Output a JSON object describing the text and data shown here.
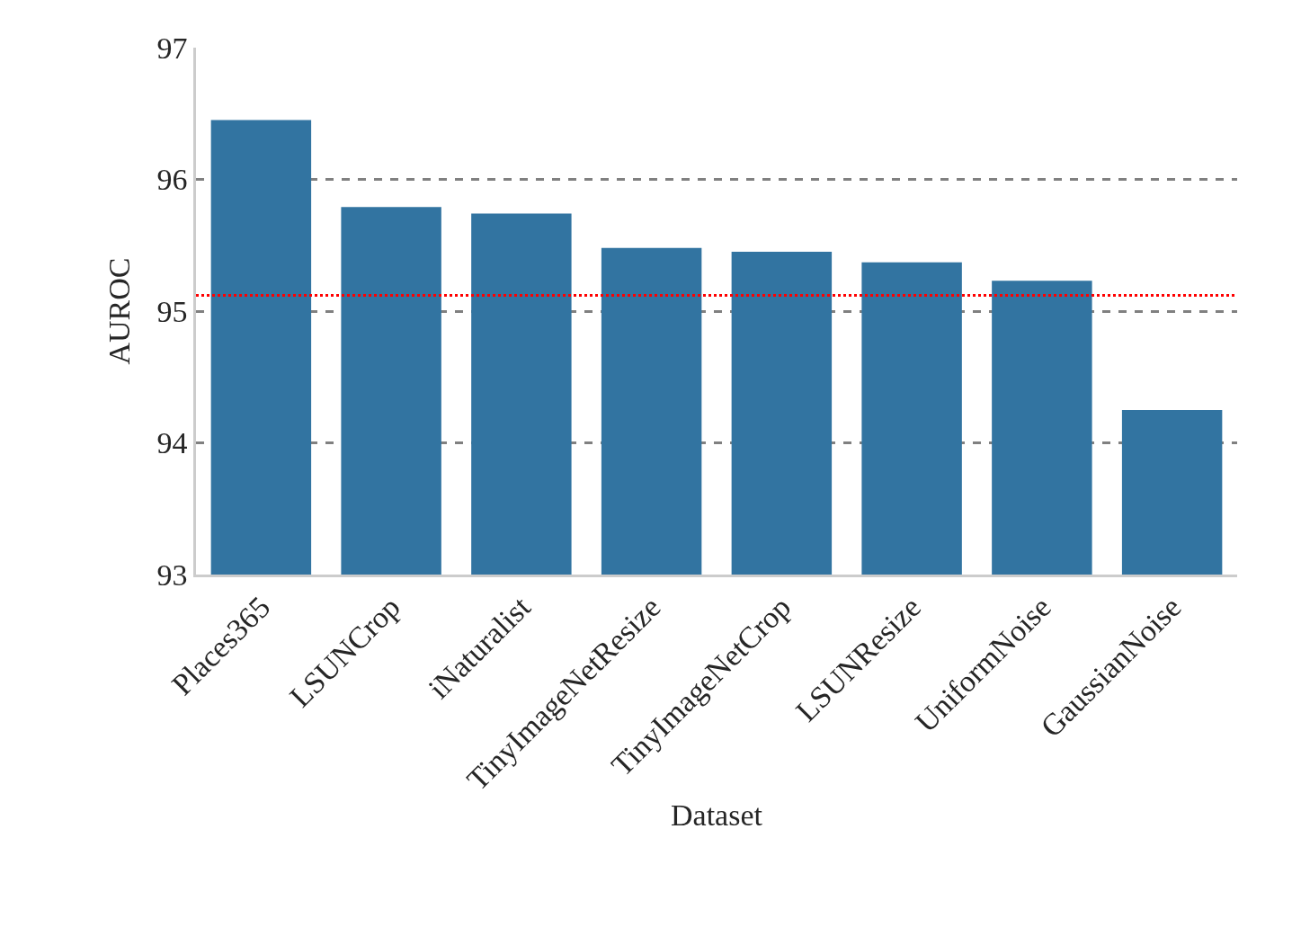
{
  "chart_data": {
    "type": "bar",
    "xlabel": "Dataset",
    "ylabel": "AUROC",
    "categories": [
      "Places365",
      "LSUNCrop",
      "iNaturalist",
      "TinyImageNetResize",
      "TinyImageNetCrop",
      "LSUNResize",
      "UniformNoise",
      "GaussianNoise"
    ],
    "values": [
      96.45,
      95.79,
      95.74,
      95.48,
      95.45,
      95.37,
      95.23,
      94.25
    ],
    "color": "#3274a1",
    "ylim": [
      93,
      97
    ],
    "yticks": [
      93,
      94,
      95,
      96,
      97
    ],
    "grid": "y",
    "ref_lines": [
      {
        "axis": "y",
        "value": 95.12,
        "color": "#ff0000",
        "line_style": "dotted"
      }
    ]
  }
}
